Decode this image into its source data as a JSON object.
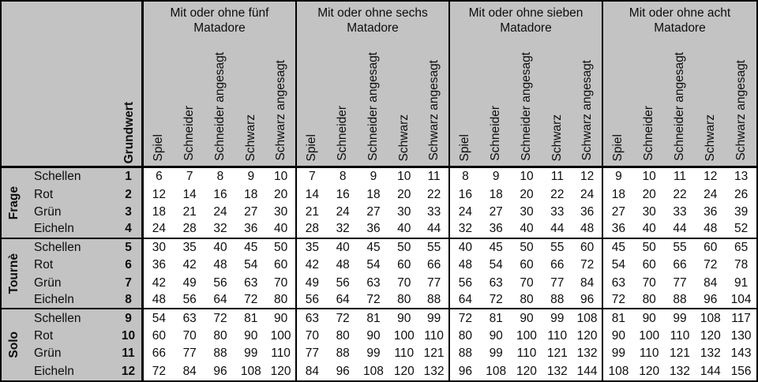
{
  "colors": {
    "header_bg": "#c3c3c3",
    "cell_bg": "#ffffff",
    "border": "#000000",
    "text": "#0d0d0d"
  },
  "table": {
    "grundwert_label": "Grundwert",
    "value_columns": [
      "Spiel",
      "Schneider",
      "Schneider angesagt",
      "Schwarz",
      "Schwarz angesagt"
    ],
    "matador_groups": [
      {
        "title_line1": "Mit oder ohne fünf",
        "title_line2": "Matadore"
      },
      {
        "title_line1": "Mit oder ohne sechs",
        "title_line2": "Matadore"
      },
      {
        "title_line1": "Mit oder ohne sieben",
        "title_line2": "Matadore"
      },
      {
        "title_line1": "Mit oder ohne acht",
        "title_line2": "Matadore"
      }
    ],
    "row_groups": [
      {
        "label": "Frage",
        "rows": [
          {
            "suit": "Schellen",
            "grundwert": "1",
            "values": [
              [
                6,
                7,
                8,
                9,
                10
              ],
              [
                7,
                8,
                9,
                10,
                11
              ],
              [
                8,
                9,
                10,
                11,
                12
              ],
              [
                9,
                10,
                11,
                12,
                13
              ]
            ]
          },
          {
            "suit": "Rot",
            "grundwert": "2",
            "values": [
              [
                12,
                14,
                16,
                18,
                20
              ],
              [
                14,
                16,
                18,
                20,
                22
              ],
              [
                16,
                18,
                20,
                22,
                24
              ],
              [
                18,
                20,
                22,
                24,
                26
              ]
            ]
          },
          {
            "suit": "Grün",
            "grundwert": "3",
            "values": [
              [
                18,
                21,
                24,
                27,
                30
              ],
              [
                21,
                24,
                27,
                30,
                33
              ],
              [
                24,
                27,
                30,
                33,
                36
              ],
              [
                27,
                30,
                33,
                36,
                39
              ]
            ]
          },
          {
            "suit": "Eicheln",
            "grundwert": "4",
            "values": [
              [
                24,
                28,
                32,
                36,
                40
              ],
              [
                28,
                32,
                36,
                40,
                44
              ],
              [
                32,
                36,
                40,
                44,
                48
              ],
              [
                36,
                40,
                44,
                48,
                52
              ]
            ]
          }
        ]
      },
      {
        "label": "Tournè",
        "rows": [
          {
            "suit": "Schellen",
            "grundwert": "5",
            "values": [
              [
                30,
                35,
                40,
                45,
                50
              ],
              [
                35,
                40,
                45,
                50,
                55
              ],
              [
                40,
                45,
                50,
                55,
                60
              ],
              [
                45,
                50,
                55,
                60,
                65
              ]
            ]
          },
          {
            "suit": "Rot",
            "grundwert": "6",
            "values": [
              [
                36,
                42,
                48,
                54,
                60
              ],
              [
                42,
                48,
                54,
                60,
                66
              ],
              [
                48,
                54,
                60,
                66,
                72
              ],
              [
                54,
                60,
                66,
                72,
                78
              ]
            ]
          },
          {
            "suit": "Grün",
            "grundwert": "7",
            "values": [
              [
                42,
                49,
                56,
                63,
                70
              ],
              [
                49,
                56,
                63,
                70,
                77
              ],
              [
                56,
                63,
                70,
                77,
                84
              ],
              [
                63,
                70,
                77,
                84,
                91
              ]
            ]
          },
          {
            "suit": "Eicheln",
            "grundwert": "8",
            "values": [
              [
                48,
                56,
                64,
                72,
                80
              ],
              [
                56,
                64,
                72,
                80,
                88
              ],
              [
                64,
                72,
                80,
                88,
                96
              ],
              [
                72,
                80,
                88,
                96,
                104
              ]
            ]
          }
        ]
      },
      {
        "label": "Solo",
        "rows": [
          {
            "suit": "Schellen",
            "grundwert": "9",
            "values": [
              [
                54,
                63,
                72,
                81,
                90
              ],
              [
                63,
                72,
                81,
                90,
                99
              ],
              [
                72,
                81,
                90,
                99,
                108
              ],
              [
                81,
                90,
                99,
                108,
                117
              ]
            ]
          },
          {
            "suit": "Rot",
            "grundwert": "10",
            "values": [
              [
                60,
                70,
                80,
                90,
                100
              ],
              [
                70,
                80,
                90,
                100,
                110
              ],
              [
                80,
                90,
                100,
                110,
                120
              ],
              [
                90,
                100,
                110,
                120,
                130
              ]
            ]
          },
          {
            "suit": "Grün",
            "grundwert": "11",
            "values": [
              [
                66,
                77,
                88,
                99,
                110
              ],
              [
                77,
                88,
                99,
                110,
                121
              ],
              [
                88,
                99,
                110,
                121,
                132
              ],
              [
                99,
                110,
                121,
                132,
                143
              ]
            ]
          },
          {
            "suit": "Eicheln",
            "grundwert": "12",
            "values": [
              [
                72,
                84,
                96,
                108,
                120
              ],
              [
                84,
                96,
                108,
                120,
                132
              ],
              [
                96,
                108,
                120,
                132,
                144
              ],
              [
                108,
                120,
                132,
                144,
                156
              ]
            ]
          }
        ]
      }
    ]
  }
}
